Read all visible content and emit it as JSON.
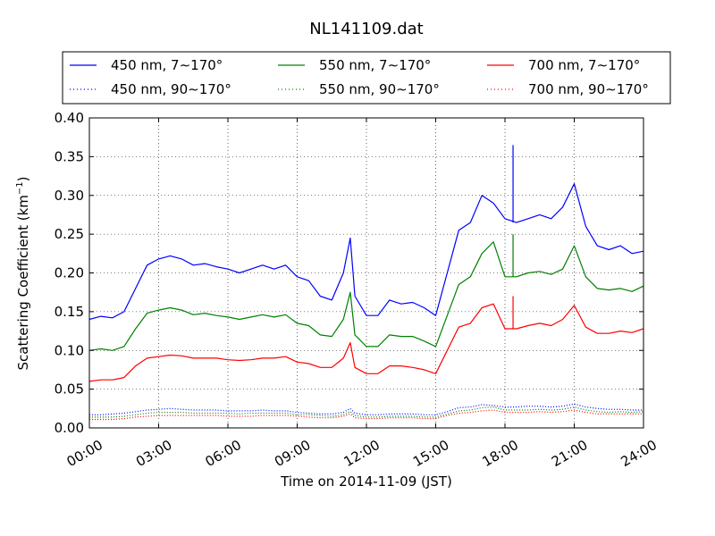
{
  "chart_data": {
    "type": "line",
    "title": "NL141109.dat",
    "xlabel": "Time on 2014-11-09 (JST)",
    "ylabel": "Scattering Coefficient (km",
    "ylabel_sup": "−1",
    "ylabel_close": ")",
    "xlim": [
      0,
      24
    ],
    "ylim": [
      0,
      0.4
    ],
    "xticks": [
      0,
      3,
      6,
      9,
      12,
      15,
      18,
      21,
      24
    ],
    "xtick_labels": [
      "00:00",
      "03:00",
      "06:00",
      "09:00",
      "12:00",
      "15:00",
      "18:00",
      "21:00",
      "24:00"
    ],
    "yticks": [
      0.0,
      0.05,
      0.1,
      0.15,
      0.2,
      0.25,
      0.3,
      0.35,
      0.4
    ],
    "ytick_labels": [
      "0.00",
      "0.05",
      "0.10",
      "0.15",
      "0.20",
      "0.25",
      "0.30",
      "0.35",
      "0.40"
    ],
    "grid": true,
    "legend_placement": "top, above plot",
    "x_hours": [
      0,
      0.5,
      1,
      1.5,
      2,
      2.5,
      3,
      3.5,
      4,
      4.5,
      5,
      5.5,
      6,
      6.5,
      7,
      7.5,
      8,
      8.5,
      9,
      9.5,
      10,
      10.5,
      11,
      11.3,
      11.5,
      12,
      12.5,
      13,
      13.5,
      14,
      14.5,
      15,
      15.5,
      16,
      16.5,
      17,
      17.5,
      18,
      18.5,
      19,
      19.5,
      20,
      20.5,
      21,
      21.5,
      22,
      22.5,
      23,
      23.5,
      24
    ],
    "series": [
      {
        "name": "450 nm, 7∼170°",
        "color": "#0000ff",
        "style": "solid",
        "values": [
          0.14,
          0.144,
          0.142,
          0.15,
          0.18,
          0.21,
          0.218,
          0.222,
          0.218,
          0.21,
          0.212,
          0.208,
          0.205,
          0.2,
          0.205,
          0.21,
          0.205,
          0.21,
          0.195,
          0.19,
          0.17,
          0.165,
          0.2,
          0.245,
          0.17,
          0.145,
          0.145,
          0.165,
          0.16,
          0.162,
          0.155,
          0.145,
          0.2,
          0.255,
          0.265,
          0.3,
          0.29,
          0.27,
          0.265,
          0.27,
          0.275,
          0.27,
          0.285,
          0.315,
          0.26,
          0.235,
          0.23,
          0.235,
          0.225,
          0.228
        ]
      },
      {
        "name": "450 nm, 90∼170°",
        "color": "#0000ff",
        "style": "dotted",
        "values": [
          0.017,
          0.017,
          0.018,
          0.019,
          0.021,
          0.023,
          0.024,
          0.025,
          0.024,
          0.023,
          0.023,
          0.023,
          0.022,
          0.022,
          0.022,
          0.023,
          0.022,
          0.022,
          0.02,
          0.019,
          0.018,
          0.018,
          0.02,
          0.025,
          0.019,
          0.017,
          0.017,
          0.018,
          0.018,
          0.018,
          0.017,
          0.017,
          0.021,
          0.026,
          0.027,
          0.03,
          0.029,
          0.027,
          0.027,
          0.028,
          0.028,
          0.027,
          0.028,
          0.031,
          0.027,
          0.025,
          0.024,
          0.024,
          0.023,
          0.023
        ]
      },
      {
        "name": "550 nm, 7∼170°",
        "color": "#008000",
        "style": "solid",
        "values": [
          0.1,
          0.102,
          0.1,
          0.105,
          0.128,
          0.148,
          0.152,
          0.155,
          0.152,
          0.146,
          0.148,
          0.145,
          0.143,
          0.14,
          0.143,
          0.146,
          0.143,
          0.146,
          0.135,
          0.132,
          0.12,
          0.118,
          0.14,
          0.175,
          0.12,
          0.105,
          0.105,
          0.12,
          0.118,
          0.118,
          0.112,
          0.105,
          0.145,
          0.185,
          0.195,
          0.225,
          0.24,
          0.195,
          0.195,
          0.2,
          0.202,
          0.198,
          0.205,
          0.235,
          0.195,
          0.18,
          0.178,
          0.18,
          0.176,
          0.183
        ]
      },
      {
        "name": "550 nm, 90∼170°",
        "color": "#008000",
        "style": "dotted",
        "values": [
          0.014,
          0.014,
          0.014,
          0.015,
          0.017,
          0.019,
          0.02,
          0.02,
          0.02,
          0.019,
          0.019,
          0.019,
          0.019,
          0.018,
          0.019,
          0.019,
          0.019,
          0.019,
          0.017,
          0.017,
          0.016,
          0.015,
          0.017,
          0.021,
          0.016,
          0.014,
          0.014,
          0.015,
          0.015,
          0.015,
          0.014,
          0.014,
          0.018,
          0.022,
          0.023,
          0.026,
          0.027,
          0.023,
          0.023,
          0.023,
          0.024,
          0.023,
          0.024,
          0.027,
          0.023,
          0.021,
          0.02,
          0.021,
          0.02,
          0.021
        ]
      },
      {
        "name": "700 nm, 7∼170°",
        "color": "#ff0000",
        "style": "solid",
        "values": [
          0.06,
          0.062,
          0.062,
          0.065,
          0.08,
          0.09,
          0.092,
          0.094,
          0.093,
          0.09,
          0.09,
          0.09,
          0.088,
          0.087,
          0.088,
          0.09,
          0.09,
          0.092,
          0.085,
          0.083,
          0.078,
          0.078,
          0.09,
          0.11,
          0.078,
          0.07,
          0.07,
          0.08,
          0.08,
          0.078,
          0.075,
          0.07,
          0.1,
          0.13,
          0.135,
          0.155,
          0.16,
          0.128,
          0.128,
          0.132,
          0.135,
          0.132,
          0.14,
          0.158,
          0.13,
          0.122,
          0.122,
          0.125,
          0.123,
          0.128
        ]
      },
      {
        "name": "700 nm, 90∼170°",
        "color": "#ff0000",
        "style": "dotted",
        "values": [
          0.011,
          0.011,
          0.011,
          0.012,
          0.014,
          0.015,
          0.016,
          0.016,
          0.016,
          0.016,
          0.016,
          0.016,
          0.015,
          0.015,
          0.015,
          0.016,
          0.016,
          0.016,
          0.015,
          0.014,
          0.013,
          0.013,
          0.015,
          0.018,
          0.013,
          0.012,
          0.012,
          0.013,
          0.013,
          0.013,
          0.012,
          0.012,
          0.016,
          0.019,
          0.02,
          0.022,
          0.023,
          0.02,
          0.02,
          0.02,
          0.021,
          0.02,
          0.021,
          0.023,
          0.02,
          0.018,
          0.018,
          0.018,
          0.018,
          0.018
        ]
      }
    ],
    "spikes": [
      {
        "series_index": 0,
        "x": 18.35,
        "y": 0.365
      },
      {
        "series_index": 2,
        "x": 18.35,
        "y": 0.25
      },
      {
        "series_index": 4,
        "x": 18.35,
        "y": 0.17
      }
    ]
  }
}
